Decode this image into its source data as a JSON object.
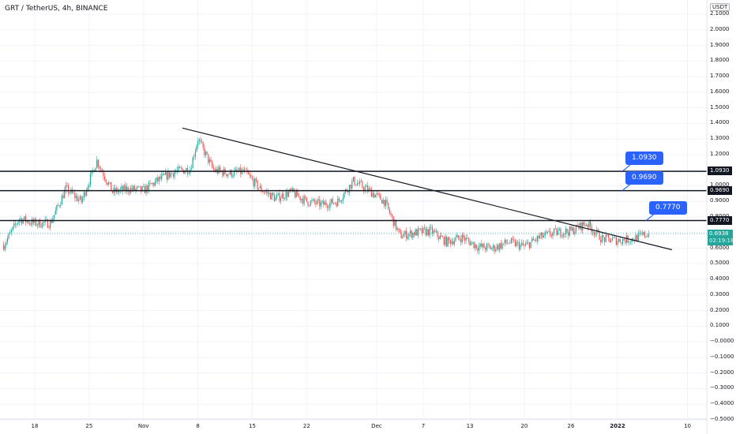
{
  "header": {
    "symbol_title": "GRT / TetherUS, 4h, BINANCE",
    "currency_unit": "USDT"
  },
  "chart_data": {
    "type": "candlestick",
    "symbol": "GRT / TetherUS",
    "interval": "4h",
    "exchange": "BINANCE",
    "y_axis": {
      "min": -0.5,
      "max": 2.1,
      "tick_labels": [
        "2.1000",
        "2.0000",
        "1.9000",
        "1.8000",
        "1.7000",
        "1.6000",
        "1.5000",
        "1.4000",
        "1.3000",
        "1.2000",
        "1.1000",
        "1.0000",
        "0.9000",
        "0.8000",
        "0.7000",
        "0.6000",
        "0.5000",
        "0.4000",
        "0.3000",
        "0.2000",
        "0.1000",
        "−0.0000",
        "−0.1000",
        "−0.2000",
        "−0.3000",
        "−0.4000",
        "−0.5000"
      ]
    },
    "x_axis": {
      "tick_labels": [
        "18",
        "25",
        "Nov",
        "8",
        "15",
        "22",
        "Dec",
        "7",
        "13",
        "20",
        "26",
        "2022",
        "10"
      ],
      "bold_label": "2022"
    },
    "horizontal_levels": [
      {
        "price": 1.093,
        "label": "1.0930",
        "callout": "1.0930"
      },
      {
        "price": 0.969,
        "label": "0.9690",
        "callout": "0.9690"
      },
      {
        "price": 0.777,
        "label": "0.7770",
        "callout": "0.7770"
      }
    ],
    "trendline": {
      "from": {
        "date": "2021-11-06",
        "price": 1.37
      },
      "to": {
        "date": "2022-01-08",
        "price": 0.59
      }
    },
    "current_price": {
      "value": "0.6938",
      "countdown": "02:19:18"
    },
    "price_path": [
      {
        "date": "2021-10-14",
        "price": 0.62
      },
      {
        "date": "2021-10-16",
        "price": 0.79
      },
      {
        "date": "2021-10-18",
        "price": 0.76
      },
      {
        "date": "2021-10-20",
        "price": 0.76
      },
      {
        "date": "2021-10-22",
        "price": 0.98
      },
      {
        "date": "2021-10-24",
        "price": 0.9
      },
      {
        "date": "2021-10-26",
        "price": 1.16
      },
      {
        "date": "2021-10-28",
        "price": 0.96
      },
      {
        "date": "2021-10-30",
        "price": 0.98
      },
      {
        "date": "2021-11-01",
        "price": 0.97
      },
      {
        "date": "2021-11-03",
        "price": 1.04
      },
      {
        "date": "2021-11-05",
        "price": 1.09
      },
      {
        "date": "2021-11-07",
        "price": 1.11
      },
      {
        "date": "2021-11-08",
        "price": 1.3
      },
      {
        "date": "2021-11-10",
        "price": 1.1
      },
      {
        "date": "2021-11-12",
        "price": 1.08
      },
      {
        "date": "2021-11-14",
        "price": 1.09
      },
      {
        "date": "2021-11-16",
        "price": 0.98
      },
      {
        "date": "2021-11-18",
        "price": 0.92
      },
      {
        "date": "2021-11-20",
        "price": 0.96
      },
      {
        "date": "2021-11-22",
        "price": 0.9
      },
      {
        "date": "2021-11-24",
        "price": 0.88
      },
      {
        "date": "2021-11-26",
        "price": 0.9
      },
      {
        "date": "2021-11-28",
        "price": 1.03
      },
      {
        "date": "2021-11-30",
        "price": 0.97
      },
      {
        "date": "2021-12-02",
        "price": 0.9
      },
      {
        "date": "2021-12-04",
        "price": 0.68
      },
      {
        "date": "2021-12-06",
        "price": 0.7
      },
      {
        "date": "2021-12-08",
        "price": 0.71
      },
      {
        "date": "2021-12-10",
        "price": 0.64
      },
      {
        "date": "2021-12-12",
        "price": 0.67
      },
      {
        "date": "2021-12-14",
        "price": 0.61
      },
      {
        "date": "2021-12-16",
        "price": 0.6
      },
      {
        "date": "2021-12-18",
        "price": 0.64
      },
      {
        "date": "2021-12-20",
        "price": 0.61
      },
      {
        "date": "2021-12-22",
        "price": 0.67
      },
      {
        "date": "2021-12-24",
        "price": 0.7
      },
      {
        "date": "2021-12-26",
        "price": 0.71
      },
      {
        "date": "2021-12-28",
        "price": 0.76
      },
      {
        "date": "2021-12-30",
        "price": 0.66
      },
      {
        "date": "2022-01-01",
        "price": 0.65
      },
      {
        "date": "2022-01-03",
        "price": 0.66
      },
      {
        "date": "2022-01-05",
        "price": 0.694
      }
    ],
    "colors": {
      "up": "#26a69a",
      "down": "#ef5350",
      "levels": "#131722",
      "callout": "#2962ff",
      "current": "#26a69a",
      "grid": "#f0f3fa"
    }
  }
}
